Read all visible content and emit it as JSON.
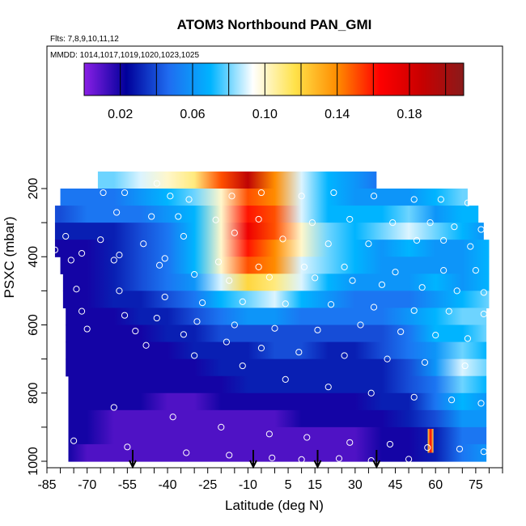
{
  "chart_data": {
    "type": "heatmap",
    "title": "ATOM3 Northbound PAN_GMI",
    "flights_note": "Flts: 7,8,9,10,11,12",
    "dates_note": "MMDD: 1014,1017,1019,1020,1023,1025",
    "xlabel": "Latitude (deg N)",
    "ylabel": "PSXC (mbar)",
    "xlim": [
      -85,
      85
    ],
    "ylim": [
      1000,
      0
    ],
    "x_ticks": [
      "-85",
      "-70",
      "-55",
      "-40",
      "-25",
      "-10",
      "5",
      "15",
      "30",
      "45",
      "60",
      "75"
    ],
    "y_ticks": [
      "200",
      "400",
      "600",
      "800",
      "1000"
    ],
    "colorbar": {
      "range": [
        0.0,
        0.21
      ],
      "tick_labels": [
        "0.02",
        "0.06",
        "0.10",
        "0.14",
        "0.18"
      ],
      "tick_values": [
        0.02,
        0.06,
        0.1,
        0.14,
        0.18
      ],
      "colors": [
        "#8a1fe6",
        "#00009a",
        "#1f6cf0",
        "#00b4ff",
        "#ffffff",
        "#ffe24a",
        "#ff8c00",
        "#ff0000",
        "#c80000",
        "#8a1a1a"
      ]
    },
    "pressure_levels": [
      175,
      225,
      275,
      325,
      375,
      425,
      475,
      525,
      575,
      625,
      675,
      725,
      775,
      825,
      875,
      925,
      975
    ],
    "layer_lat_ranges": [
      [
        -66,
        38
      ],
      [
        -80,
        72
      ],
      [
        -82,
        76
      ],
      [
        -82,
        78
      ],
      [
        -82,
        80
      ],
      [
        -80,
        80
      ],
      [
        -79,
        80
      ],
      [
        -79,
        80
      ],
      [
        -78,
        79
      ],
      [
        -78,
        79
      ],
      [
        -78,
        79
      ],
      [
        -78,
        79
      ],
      [
        -77,
        79
      ],
      [
        -77,
        79
      ],
      [
        -77,
        79
      ],
      [
        -77,
        79
      ],
      [
        -77,
        79
      ]
    ],
    "grid_lat": [
      -80,
      -70,
      -60,
      -50,
      -40,
      -30,
      -20,
      -10,
      0,
      10,
      20,
      30,
      40,
      50,
      60,
      70,
      80
    ],
    "values": [
      [
        0.06,
        0.08,
        0.08,
        0.09,
        0.1,
        0.11,
        0.15,
        0.19,
        0.14,
        0.09,
        0.07,
        0.06,
        0.05,
        0.05,
        0.05,
        0.05,
        0.05
      ],
      [
        0.05,
        0.05,
        0.05,
        0.06,
        0.07,
        0.08,
        0.1,
        0.15,
        0.14,
        0.09,
        0.07,
        0.06,
        0.06,
        0.06,
        0.07,
        0.08,
        0.07
      ],
      [
        0.04,
        0.05,
        0.05,
        0.05,
        0.06,
        0.07,
        0.1,
        0.16,
        0.15,
        0.09,
        0.07,
        0.07,
        0.07,
        0.08,
        0.06,
        0.07,
        0.07
      ],
      [
        0.03,
        0.03,
        0.03,
        0.04,
        0.05,
        0.07,
        0.1,
        0.17,
        0.15,
        0.1,
        0.08,
        0.07,
        0.08,
        0.09,
        0.08,
        0.07,
        0.06
      ],
      [
        0.02,
        0.02,
        0.03,
        0.04,
        0.05,
        0.07,
        0.1,
        0.16,
        0.14,
        0.1,
        0.08,
        0.07,
        0.06,
        0.07,
        0.06,
        0.06,
        0.07
      ],
      [
        0.02,
        0.02,
        0.03,
        0.04,
        0.05,
        0.07,
        0.1,
        0.15,
        0.14,
        0.09,
        0.08,
        0.07,
        0.06,
        0.06,
        0.06,
        0.06,
        0.07
      ],
      [
        0.02,
        0.02,
        0.03,
        0.04,
        0.05,
        0.06,
        0.09,
        0.12,
        0.11,
        0.09,
        0.07,
        0.06,
        0.06,
        0.06,
        0.07,
        0.06,
        0.07
      ],
      [
        0.02,
        0.02,
        0.03,
        0.03,
        0.04,
        0.05,
        0.07,
        0.08,
        0.09,
        0.07,
        0.06,
        0.05,
        0.05,
        0.05,
        0.06,
        0.07,
        0.08
      ],
      [
        0.02,
        0.02,
        0.02,
        0.03,
        0.03,
        0.04,
        0.05,
        0.06,
        0.06,
        0.05,
        0.05,
        0.05,
        0.05,
        0.06,
        0.07,
        0.08,
        0.08
      ],
      [
        0.02,
        0.02,
        0.02,
        0.02,
        0.03,
        0.03,
        0.04,
        0.04,
        0.04,
        0.04,
        0.04,
        0.04,
        0.04,
        0.05,
        0.07,
        0.07,
        0.08
      ],
      [
        0.02,
        0.02,
        0.02,
        0.02,
        0.02,
        0.03,
        0.03,
        0.03,
        0.04,
        0.04,
        0.03,
        0.03,
        0.04,
        0.05,
        0.06,
        0.08,
        0.07
      ],
      [
        0.02,
        0.02,
        0.02,
        0.02,
        0.02,
        0.02,
        0.03,
        0.03,
        0.03,
        0.03,
        0.03,
        0.03,
        0.03,
        0.04,
        0.06,
        0.09,
        0.08
      ],
      [
        0.02,
        0.02,
        0.02,
        0.02,
        0.02,
        0.02,
        0.02,
        0.03,
        0.03,
        0.03,
        0.03,
        0.03,
        0.03,
        0.04,
        0.05,
        0.08,
        0.07
      ],
      [
        0.02,
        0.02,
        0.02,
        0.02,
        0.01,
        0.01,
        0.02,
        0.02,
        0.02,
        0.02,
        0.02,
        0.02,
        0.03,
        0.03,
        0.05,
        0.07,
        0.06
      ],
      [
        0.02,
        0.02,
        0.01,
        0.01,
        0.01,
        0.01,
        0.01,
        0.01,
        0.01,
        0.02,
        0.02,
        0.02,
        0.02,
        0.03,
        0.04,
        0.06,
        0.06
      ],
      [
        0.02,
        0.02,
        0.01,
        0.01,
        0.01,
        0.01,
        0.01,
        0.01,
        0.01,
        0.01,
        0.01,
        0.01,
        0.02,
        0.02,
        0.03,
        0.05,
        0.05
      ],
      [
        0.02,
        0.01,
        0.01,
        0.01,
        0.01,
        0.01,
        0.01,
        0.01,
        0.01,
        0.01,
        0.01,
        0.01,
        0.02,
        0.02,
        0.03,
        0.05,
        0.06
      ]
    ],
    "hotspot": {
      "lat": 58,
      "pressure": 940,
      "value": 0.17
    },
    "arrows_lat": [
      -53,
      -8,
      16,
      38
    ],
    "sample_points": [
      [
        -44,
        185
      ],
      [
        -64,
        212
      ],
      [
        -56,
        212
      ],
      [
        -39,
        222
      ],
      [
        -32,
        232
      ],
      [
        -16,
        222
      ],
      [
        -5,
        212
      ],
      [
        10,
        222
      ],
      [
        22,
        212
      ],
      [
        37,
        222
      ],
      [
        52,
        232
      ],
      [
        62,
        232
      ],
      [
        72,
        242
      ],
      [
        -59,
        270
      ],
      [
        -46,
        282
      ],
      [
        -36,
        282
      ],
      [
        -22,
        292
      ],
      [
        -6,
        290
      ],
      [
        14,
        300
      ],
      [
        28,
        290
      ],
      [
        44,
        300
      ],
      [
        58,
        300
      ],
      [
        67,
        312
      ],
      [
        77,
        320
      ],
      [
        -78,
        340
      ],
      [
        -65,
        350
      ],
      [
        -49,
        362
      ],
      [
        -34,
        340
      ],
      [
        -15,
        330
      ],
      [
        3,
        348
      ],
      [
        20,
        362
      ],
      [
        35,
        362
      ],
      [
        53,
        352
      ],
      [
        63,
        352
      ],
      [
        73,
        370
      ],
      [
        -82,
        380
      ],
      [
        -72,
        390
      ],
      [
        -58,
        395
      ],
      [
        -41,
        405
      ],
      [
        -21,
        415
      ],
      [
        -6,
        430
      ],
      [
        11,
        430
      ],
      [
        26,
        430
      ],
      [
        45,
        445
      ],
      [
        63,
        440
      ],
      [
        75,
        440
      ],
      [
        -76,
        410
      ],
      [
        -60,
        410
      ],
      [
        -43,
        425
      ],
      [
        -30,
        452
      ],
      [
        -17,
        470
      ],
      [
        -2,
        460
      ],
      [
        15,
        462
      ],
      [
        29,
        470
      ],
      [
        40,
        482
      ],
      [
        55,
        490
      ],
      [
        68,
        500
      ],
      [
        78,
        505
      ],
      [
        -74,
        495
      ],
      [
        -58,
        500
      ],
      [
        -41,
        518
      ],
      [
        -27,
        535
      ],
      [
        -12,
        532
      ],
      [
        4,
        538
      ],
      [
        21,
        540
      ],
      [
        37,
        548
      ],
      [
        52,
        558
      ],
      [
        65,
        560
      ],
      [
        78,
        568
      ],
      [
        -72,
        560
      ],
      [
        -56,
        572
      ],
      [
        -44,
        580
      ],
      [
        -29,
        590
      ],
      [
        -15,
        600
      ],
      [
        0,
        610
      ],
      [
        16,
        615
      ],
      [
        32,
        600
      ],
      [
        47,
        620
      ],
      [
        60,
        630
      ],
      [
        72,
        640
      ],
      [
        -70,
        612
      ],
      [
        -52,
        618
      ],
      [
        -34,
        628
      ],
      [
        -18,
        650
      ],
      [
        -5,
        668
      ],
      [
        9,
        680
      ],
      [
        26,
        690
      ],
      [
        42,
        700
      ],
      [
        56,
        710
      ],
      [
        71,
        720
      ],
      [
        -48,
        660
      ],
      [
        -30,
        690
      ],
      [
        -12,
        720
      ],
      [
        4,
        760
      ],
      [
        20,
        782
      ],
      [
        36,
        800
      ],
      [
        52,
        812
      ],
      [
        66,
        820
      ],
      [
        77,
        830
      ],
      [
        -60,
        842
      ],
      [
        -38,
        870
      ],
      [
        -20,
        900
      ],
      [
        -2,
        920
      ],
      [
        12,
        930
      ],
      [
        28,
        945
      ],
      [
        43,
        950
      ],
      [
        57,
        960
      ],
      [
        69,
        964
      ],
      [
        78,
        972
      ],
      [
        -75,
        940
      ],
      [
        -55,
        958
      ],
      [
        -33,
        975
      ],
      [
        -17,
        982
      ],
      [
        -1,
        990
      ],
      [
        10,
        995
      ],
      [
        24,
        992
      ],
      [
        36,
        998
      ],
      [
        50,
        994
      ]
    ]
  }
}
